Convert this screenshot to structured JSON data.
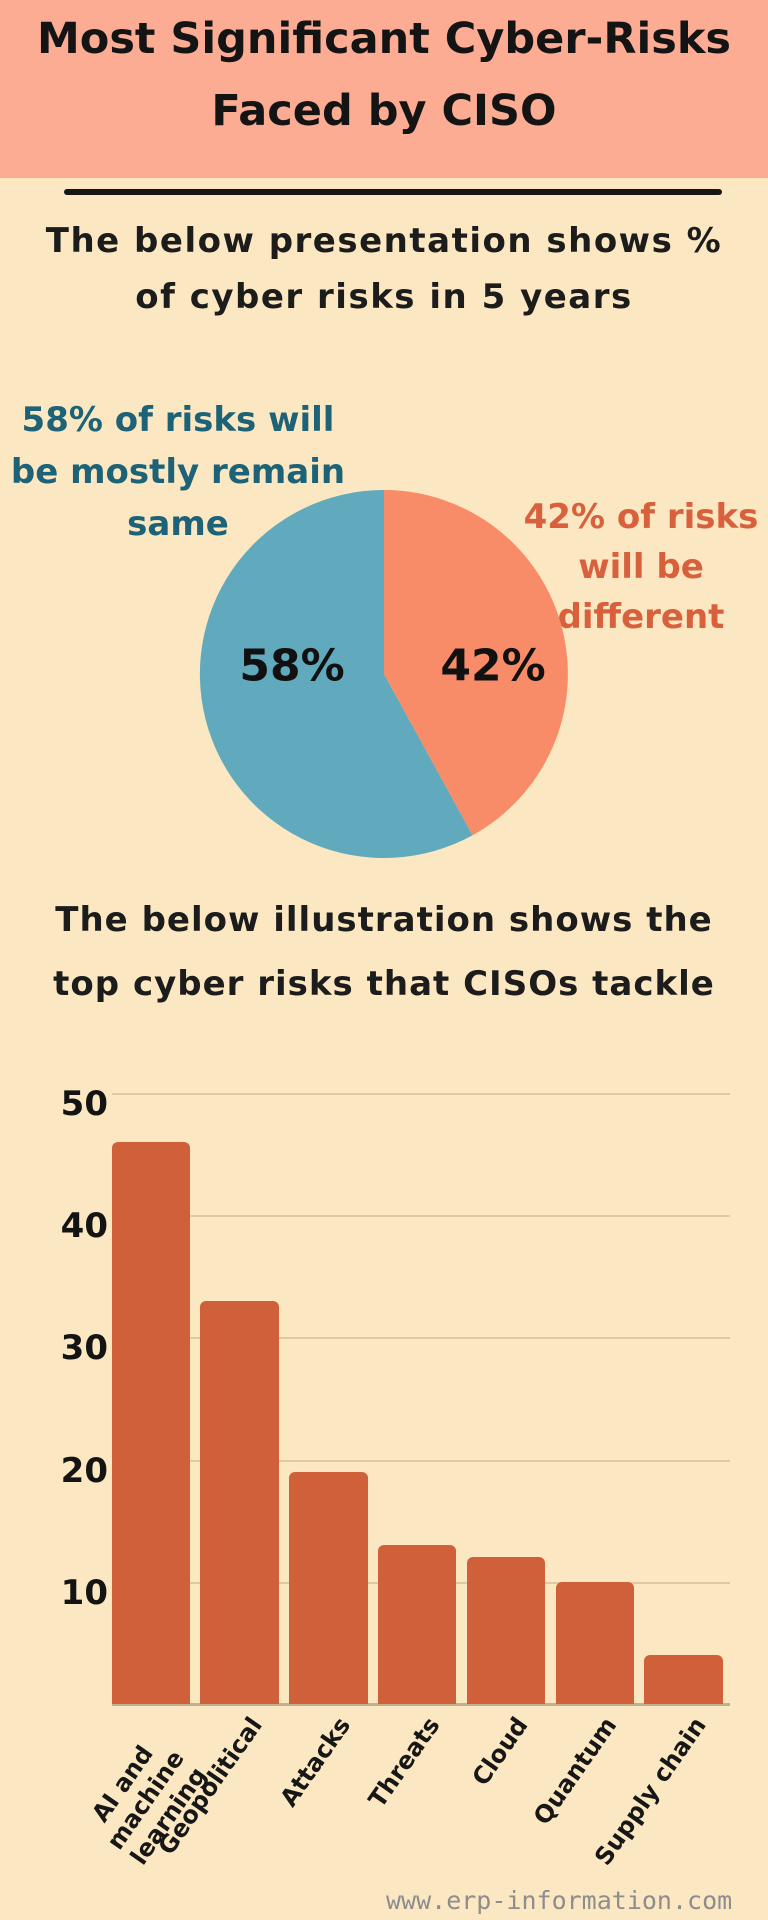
{
  "page": {
    "background": "#fbe7c1"
  },
  "header": {
    "background": "#fbac93",
    "title_line1": "Most Significant Cyber-Risks",
    "title_line2": "Faced by CISO"
  },
  "intro": {
    "line1": "The below presentation shows %",
    "line2": "of cyber risks in 5 years"
  },
  "pie_section": {
    "left_caption": [
      "58% of risks will",
      "be mostly remain",
      "same"
    ],
    "left_caption_color": "#1d6277",
    "right_caption": [
      "42% of risks",
      "will be",
      "different"
    ],
    "right_caption_color": "#d9603c"
  },
  "bar_section": {
    "heading_line1": "The below illustration shows the",
    "heading_line2": "top cyber risks that CISOs tackle"
  },
  "chart_data": [
    {
      "type": "pie",
      "title": "% of cyber risks in 5 years",
      "slices": [
        {
          "label": "58%",
          "value": 58,
          "color": "#61a9bc",
          "caption": "58% of risks will be mostly remain same"
        },
        {
          "label": "42%",
          "value": 42,
          "color": "#f88c69",
          "caption": "42% of risks will be different"
        }
      ],
      "start_angle_deg": 0,
      "legend_position": "none"
    },
    {
      "type": "bar",
      "title": "The below illustration shows the top cyber risks that CISOs tackle",
      "categories": [
        "AI and machine learning",
        "Geopolitical",
        "Attacks",
        "Threats",
        "Cloud",
        "Quantum",
        "Supply chain"
      ],
      "display_lines": [
        [
          "AI and machine",
          "learning"
        ],
        [
          "Geopolitical"
        ],
        [
          "Attacks"
        ],
        [
          "Threats"
        ],
        [
          "Cloud"
        ],
        [
          "Quantum"
        ],
        [
          "Supply chain"
        ]
      ],
      "values": [
        46,
        33,
        19,
        13,
        12,
        10,
        4
      ],
      "bar_color": "#d0603a",
      "xlabel": "",
      "ylabel": "",
      "ylim": [
        0,
        50
      ],
      "yticks": [
        10,
        20,
        30,
        40,
        50
      ],
      "grid": true,
      "gridline_color": "#ddc9a3",
      "legend_position": "none"
    }
  ],
  "footer": {
    "website": "www.erp-information.com",
    "color": "#8d8d8d"
  }
}
